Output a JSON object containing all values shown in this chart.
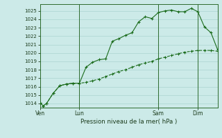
{
  "title": "",
  "xlabel": "Pression niveau de la mer( hPa )",
  "ylabel": "",
  "bg_color": "#cceae8",
  "grid_color": "#b0d8d4",
  "line_color": "#1a6b1a",
  "ylim": [
    1013.5,
    1025.8
  ],
  "yticks": [
    1014,
    1015,
    1016,
    1017,
    1018,
    1019,
    1020,
    1021,
    1022,
    1023,
    1024,
    1025
  ],
  "xtick_labels": [
    "Ven",
    "Lun",
    "Sam",
    "Dim"
  ],
  "xtick_positions": [
    0,
    6,
    18,
    24
  ],
  "vline_positions": [
    0,
    6,
    18,
    24
  ],
  "series1_x": [
    0,
    0.5,
    1,
    2,
    3,
    4,
    5,
    6,
    7,
    8,
    9,
    10,
    11,
    12,
    13,
    14,
    15,
    16,
    17,
    18,
    19,
    20,
    21,
    22,
    23,
    24,
    25,
    26,
    27
  ],
  "series1_y": [
    1014.1,
    1013.7,
    1014.0,
    1015.2,
    1016.1,
    1016.3,
    1016.4,
    1016.4,
    1018.3,
    1018.9,
    1019.2,
    1019.3,
    1021.4,
    1021.7,
    1022.1,
    1022.4,
    1023.7,
    1024.3,
    1024.1,
    1024.8,
    1025.0,
    1025.1,
    1024.9,
    1024.9,
    1025.3,
    1024.9,
    1023.1,
    1022.4,
    1020.4
  ],
  "series2_x": [
    0,
    0.5,
    1,
    2,
    3,
    4,
    5,
    6,
    7,
    8,
    9,
    10,
    11,
    12,
    13,
    14,
    15,
    16,
    17,
    18,
    19,
    20,
    21,
    22,
    23,
    24,
    25,
    26,
    27
  ],
  "series2_y": [
    1014.1,
    1013.7,
    1014.0,
    1015.2,
    1016.1,
    1016.3,
    1016.4,
    1016.4,
    1016.5,
    1016.7,
    1016.9,
    1017.2,
    1017.5,
    1017.8,
    1018.0,
    1018.3,
    1018.6,
    1018.8,
    1019.0,
    1019.3,
    1019.5,
    1019.7,
    1019.9,
    1020.1,
    1020.2,
    1020.3,
    1020.3,
    1020.3,
    1020.2
  ],
  "ytick_fontsize": 5.0,
  "xtick_fontsize": 5.5,
  "xlabel_fontsize": 6.2
}
